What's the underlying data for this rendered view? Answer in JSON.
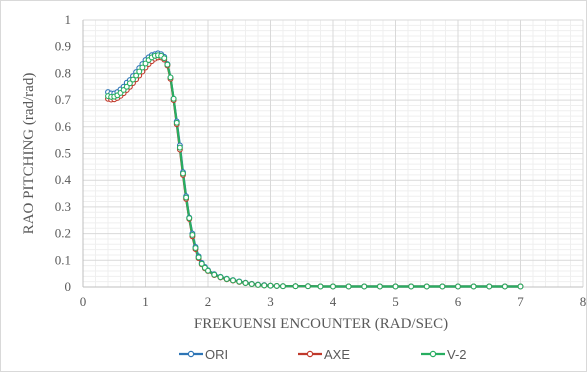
{
  "chart_data": {
    "type": "line",
    "xlabel": "FREKUENSI ENCOUNTER (RAD/SEC)",
    "ylabel": "RAO PITCHING (rad/rad)",
    "xlim": [
      0,
      8
    ],
    "ylim": [
      0,
      1
    ],
    "x_ticks": [
      "0",
      "1",
      "2",
      "3",
      "4",
      "5",
      "6",
      "7",
      "8"
    ],
    "y_ticks": [
      "0",
      "0.1",
      "0.2",
      "0.3",
      "0.4",
      "0.5",
      "0.6",
      "0.7",
      "0.8",
      "0.9",
      "1"
    ],
    "grid": "major and minor",
    "legend_position": "bottom",
    "series": [
      {
        "name": "ORI",
        "color": "#2e75b6",
        "points": [
          [
            0.4,
            0.73
          ],
          [
            0.45,
            0.725
          ],
          [
            0.5,
            0.725
          ],
          [
            0.55,
            0.73
          ],
          [
            0.6,
            0.74
          ],
          [
            0.65,
            0.75
          ],
          [
            0.7,
            0.765
          ],
          [
            0.75,
            0.775
          ],
          [
            0.8,
            0.79
          ],
          [
            0.85,
            0.805
          ],
          [
            0.9,
            0.82
          ],
          [
            0.95,
            0.835
          ],
          [
            1.0,
            0.85
          ],
          [
            1.05,
            0.86
          ],
          [
            1.1,
            0.868
          ],
          [
            1.15,
            0.872
          ],
          [
            1.2,
            0.875
          ],
          [
            1.25,
            0.872
          ],
          [
            1.3,
            0.862
          ],
          [
            1.35,
            0.835
          ],
          [
            1.4,
            0.785
          ],
          [
            1.45,
            0.705
          ],
          [
            1.5,
            0.62
          ],
          [
            1.55,
            0.53
          ],
          [
            1.6,
            0.43
          ],
          [
            1.65,
            0.34
          ],
          [
            1.7,
            0.26
          ],
          [
            1.75,
            0.2
          ],
          [
            1.8,
            0.15
          ],
          [
            1.85,
            0.115
          ],
          [
            1.9,
            0.09
          ],
          [
            1.95,
            0.075
          ],
          [
            2.0,
            0.063
          ],
          [
            2.1,
            0.048
          ],
          [
            2.2,
            0.038
          ],
          [
            2.3,
            0.031
          ],
          [
            2.4,
            0.026
          ],
          [
            2.5,
            0.021
          ],
          [
            2.6,
            0.016
          ],
          [
            2.7,
            0.012
          ],
          [
            2.8,
            0.009
          ],
          [
            2.9,
            0.007
          ],
          [
            3.0,
            0.005
          ],
          [
            3.1,
            0.004
          ],
          [
            3.2,
            0.003
          ],
          [
            3.4,
            0.003
          ],
          [
            3.6,
            0.003
          ],
          [
            3.8,
            0.002
          ],
          [
            4.0,
            0.002
          ],
          [
            4.25,
            0.002
          ],
          [
            4.5,
            0.002
          ],
          [
            4.75,
            0.002
          ],
          [
            5.0,
            0.002
          ],
          [
            5.25,
            0.002
          ],
          [
            5.5,
            0.002
          ],
          [
            5.75,
            0.002
          ],
          [
            6.0,
            0.002
          ],
          [
            6.25,
            0.002
          ],
          [
            6.5,
            0.002
          ],
          [
            6.75,
            0.002
          ],
          [
            7.0,
            0.002
          ]
        ]
      },
      {
        "name": "AXE",
        "color": "#c0392b",
        "points": [
          [
            0.4,
            0.705
          ],
          [
            0.45,
            0.702
          ],
          [
            0.5,
            0.703
          ],
          [
            0.55,
            0.708
          ],
          [
            0.6,
            0.716
          ],
          [
            0.65,
            0.726
          ],
          [
            0.7,
            0.738
          ],
          [
            0.75,
            0.75
          ],
          [
            0.8,
            0.764
          ],
          [
            0.85,
            0.778
          ],
          [
            0.9,
            0.792
          ],
          [
            0.95,
            0.807
          ],
          [
            1.0,
            0.822
          ],
          [
            1.05,
            0.835
          ],
          [
            1.1,
            0.846
          ],
          [
            1.15,
            0.855
          ],
          [
            1.2,
            0.86
          ],
          [
            1.25,
            0.86
          ],
          [
            1.3,
            0.852
          ],
          [
            1.35,
            0.83
          ],
          [
            1.4,
            0.78
          ],
          [
            1.45,
            0.7
          ],
          [
            1.5,
            0.61
          ],
          [
            1.55,
            0.515
          ],
          [
            1.6,
            0.42
          ],
          [
            1.65,
            0.33
          ],
          [
            1.7,
            0.255
          ],
          [
            1.75,
            0.19
          ],
          [
            1.8,
            0.142
          ],
          [
            1.85,
            0.108
          ],
          [
            1.9,
            0.085
          ],
          [
            1.95,
            0.07
          ],
          [
            2.0,
            0.06
          ],
          [
            2.1,
            0.045
          ],
          [
            2.2,
            0.036
          ],
          [
            2.3,
            0.029
          ],
          [
            2.4,
            0.024
          ],
          [
            2.5,
            0.019
          ],
          [
            2.6,
            0.015
          ],
          [
            2.7,
            0.011
          ],
          [
            2.8,
            0.008
          ],
          [
            2.9,
            0.006
          ],
          [
            3.0,
            0.005
          ],
          [
            3.1,
            0.004
          ],
          [
            3.2,
            0.003
          ],
          [
            3.4,
            0.003
          ],
          [
            3.6,
            0.003
          ],
          [
            3.8,
            0.002
          ],
          [
            4.0,
            0.002
          ],
          [
            4.25,
            0.002
          ],
          [
            4.5,
            0.002
          ],
          [
            4.75,
            0.002
          ],
          [
            5.0,
            0.002
          ],
          [
            5.25,
            0.002
          ],
          [
            5.5,
            0.002
          ],
          [
            5.75,
            0.002
          ],
          [
            6.0,
            0.002
          ],
          [
            6.25,
            0.002
          ],
          [
            6.5,
            0.002
          ],
          [
            6.75,
            0.002
          ],
          [
            7.0,
            0.002
          ]
        ]
      },
      {
        "name": "V-2",
        "color": "#27ae60",
        "points": [
          [
            0.4,
            0.715
          ],
          [
            0.45,
            0.712
          ],
          [
            0.5,
            0.713
          ],
          [
            0.55,
            0.718
          ],
          [
            0.6,
            0.727
          ],
          [
            0.65,
            0.738
          ],
          [
            0.7,
            0.75
          ],
          [
            0.75,
            0.763
          ],
          [
            0.8,
            0.777
          ],
          [
            0.85,
            0.792
          ],
          [
            0.9,
            0.807
          ],
          [
            0.95,
            0.822
          ],
          [
            1.0,
            0.837
          ],
          [
            1.05,
            0.85
          ],
          [
            1.1,
            0.86
          ],
          [
            1.15,
            0.866
          ],
          [
            1.2,
            0.868
          ],
          [
            1.25,
            0.866
          ],
          [
            1.3,
            0.857
          ],
          [
            1.35,
            0.833
          ],
          [
            1.4,
            0.785
          ],
          [
            1.45,
            0.705
          ],
          [
            1.5,
            0.615
          ],
          [
            1.55,
            0.522
          ],
          [
            1.6,
            0.425
          ],
          [
            1.65,
            0.335
          ],
          [
            1.7,
            0.258
          ],
          [
            1.75,
            0.195
          ],
          [
            1.8,
            0.146
          ],
          [
            1.85,
            0.111
          ],
          [
            1.9,
            0.087
          ],
          [
            1.95,
            0.072
          ],
          [
            2.0,
            0.061
          ],
          [
            2.1,
            0.046
          ],
          [
            2.2,
            0.037
          ],
          [
            2.3,
            0.03
          ],
          [
            2.4,
            0.025
          ],
          [
            2.5,
            0.02
          ],
          [
            2.6,
            0.015
          ],
          [
            2.7,
            0.011
          ],
          [
            2.8,
            0.008
          ],
          [
            2.9,
            0.006
          ],
          [
            3.0,
            0.005
          ],
          [
            3.1,
            0.004
          ],
          [
            3.2,
            0.003
          ],
          [
            3.4,
            0.003
          ],
          [
            3.6,
            0.003
          ],
          [
            3.8,
            0.002
          ],
          [
            4.0,
            0.002
          ],
          [
            4.25,
            0.002
          ],
          [
            4.5,
            0.002
          ],
          [
            4.75,
            0.002
          ],
          [
            5.0,
            0.002
          ],
          [
            5.25,
            0.002
          ],
          [
            5.5,
            0.002
          ],
          [
            5.75,
            0.002
          ],
          [
            6.0,
            0.002
          ],
          [
            6.25,
            0.002
          ],
          [
            6.5,
            0.002
          ],
          [
            6.75,
            0.002
          ],
          [
            7.0,
            0.002
          ]
        ]
      }
    ]
  }
}
